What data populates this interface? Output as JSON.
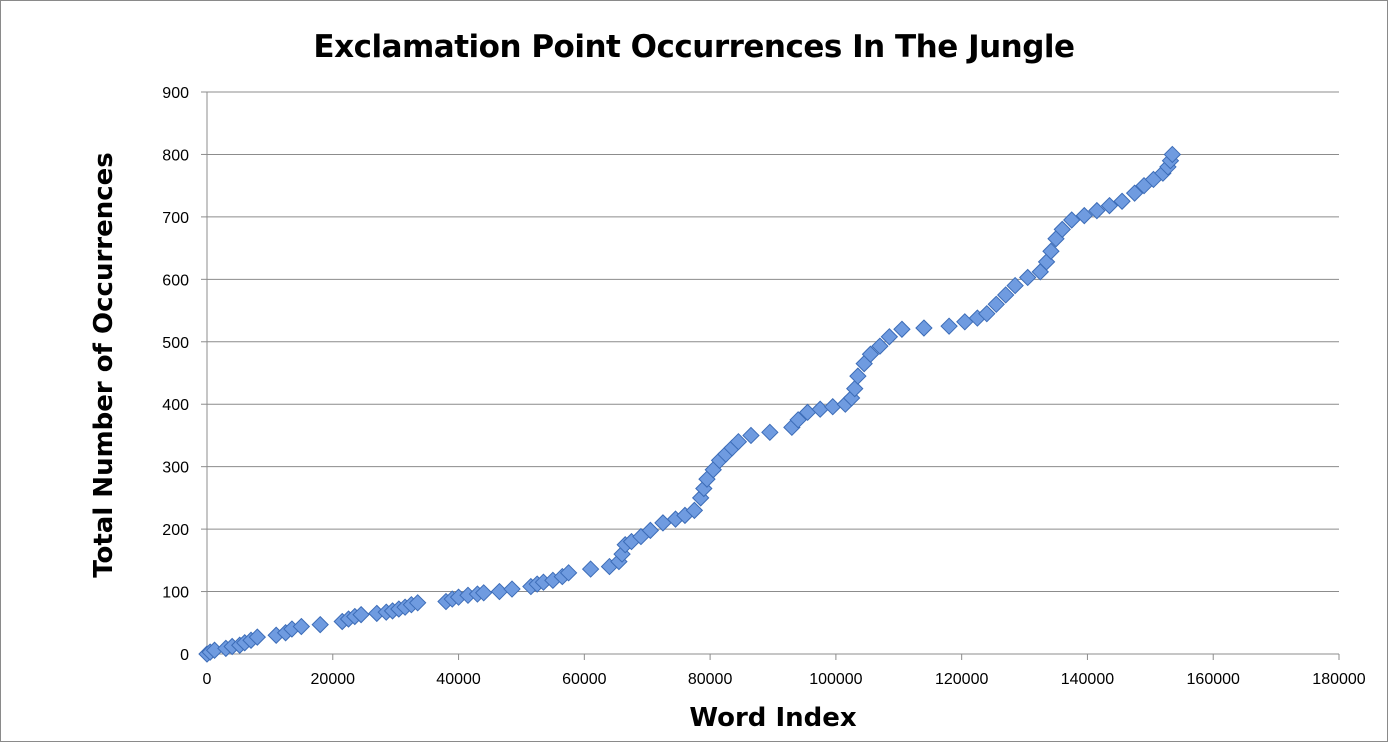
{
  "chart_data": {
    "type": "scatter",
    "title": "Exclamation Point Occurrences In The Jungle",
    "xlabel": "Word Index",
    "ylabel": "Total Number of Occurrences",
    "xlim": [
      0,
      180000
    ],
    "ylim": [
      0,
      900
    ],
    "xticks": [
      "0",
      "20000",
      "40000",
      "60000",
      "80000",
      "100000",
      "120000",
      "140000",
      "160000",
      "180000"
    ],
    "yticks": [
      "0",
      "100",
      "200",
      "300",
      "400",
      "500",
      "600",
      "700",
      "800",
      "900"
    ],
    "grid": "horizontal",
    "marker": "diamond",
    "colors": {
      "marker_fill": "#6f9be0",
      "marker_stroke": "#3c6cb7",
      "grid": "#8c8c8c",
      "axis": "#8c8c8c"
    },
    "series": [
      {
        "points": [
          [
            0,
            0
          ],
          [
            500,
            3
          ],
          [
            1200,
            6
          ],
          [
            3000,
            9
          ],
          [
            4000,
            12
          ],
          [
            5200,
            14
          ],
          [
            6000,
            18
          ],
          [
            7000,
            22
          ],
          [
            8000,
            27
          ],
          [
            11000,
            30
          ],
          [
            12500,
            34
          ],
          [
            13500,
            40
          ],
          [
            15000,
            44
          ],
          [
            18000,
            47
          ],
          [
            21500,
            52
          ],
          [
            22500,
            56
          ],
          [
            23500,
            60
          ],
          [
            24500,
            63
          ],
          [
            27000,
            65
          ],
          [
            28500,
            67
          ],
          [
            29500,
            69
          ],
          [
            30500,
            72
          ],
          [
            31500,
            75
          ],
          [
            32500,
            79
          ],
          [
            33500,
            82
          ],
          [
            38000,
            84
          ],
          [
            39000,
            88
          ],
          [
            40000,
            91
          ],
          [
            41500,
            94
          ],
          [
            43000,
            96
          ],
          [
            44000,
            98
          ],
          [
            46500,
            100
          ],
          [
            48500,
            104
          ],
          [
            51500,
            108
          ],
          [
            52500,
            112
          ],
          [
            53500,
            115
          ],
          [
            55000,
            118
          ],
          [
            56500,
            124
          ],
          [
            57500,
            130
          ],
          [
            61000,
            136
          ],
          [
            64000,
            140
          ],
          [
            65500,
            148
          ],
          [
            66000,
            160
          ],
          [
            66500,
            175
          ],
          [
            67500,
            180
          ],
          [
            69000,
            188
          ],
          [
            70500,
            198
          ],
          [
            72500,
            210
          ],
          [
            74500,
            216
          ],
          [
            76000,
            222
          ],
          [
            77500,
            230
          ],
          [
            78500,
            250
          ],
          [
            79000,
            265
          ],
          [
            79500,
            280
          ],
          [
            80500,
            295
          ],
          [
            81500,
            310
          ],
          [
            82500,
            320
          ],
          [
            83500,
            330
          ],
          [
            84500,
            340
          ],
          [
            86500,
            350
          ],
          [
            89500,
            355
          ],
          [
            93000,
            363
          ],
          [
            94000,
            375
          ],
          [
            95500,
            387
          ],
          [
            97500,
            392
          ],
          [
            99500,
            396
          ],
          [
            101500,
            400
          ],
          [
            102500,
            410
          ],
          [
            103000,
            425
          ],
          [
            103500,
            445
          ],
          [
            104500,
            465
          ],
          [
            105500,
            480
          ],
          [
            107000,
            493
          ],
          [
            108500,
            508
          ],
          [
            110500,
            520
          ],
          [
            114000,
            522
          ],
          [
            118000,
            525
          ],
          [
            120500,
            532
          ],
          [
            122500,
            538
          ],
          [
            124000,
            545
          ],
          [
            125500,
            560
          ],
          [
            127000,
            575
          ],
          [
            128500,
            590
          ],
          [
            130500,
            603
          ],
          [
            132500,
            612
          ],
          [
            133500,
            628
          ],
          [
            134200,
            645
          ],
          [
            135000,
            665
          ],
          [
            136000,
            680
          ],
          [
            137500,
            695
          ],
          [
            139500,
            702
          ],
          [
            141500,
            710
          ],
          [
            143500,
            718
          ],
          [
            145500,
            725
          ],
          [
            147500,
            738
          ],
          [
            149000,
            750
          ],
          [
            150500,
            760
          ],
          [
            152000,
            770
          ],
          [
            152800,
            780
          ],
          [
            153200,
            790
          ],
          [
            153500,
            800
          ]
        ]
      }
    ]
  }
}
